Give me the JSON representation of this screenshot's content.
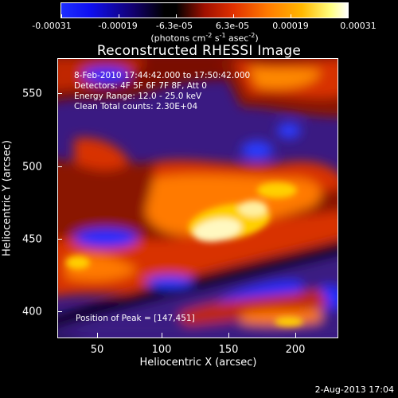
{
  "colorbar": {
    "tick_labels": [
      "-0.00031",
      "-0.00019",
      "-6.3e-05",
      "6.3e-05",
      "0.00019",
      "0.00031"
    ],
    "units_prefix": "(photons cm",
    "units_exp1": "-2",
    "units_mid": " s",
    "units_exp2": "-1",
    "units_mid2": " asec",
    "units_exp3": "-2",
    "units_suffix": ")"
  },
  "title": "Reconstructed RHESSI Image",
  "info": {
    "time_range": "8-Feb-2010 17:44:42.000 to 17:50:42.000",
    "detectors": "Detectors: 4F 5F 6F 7F 8F, Att 0",
    "energy": "Energy Range: 12.0 - 25.0 keV",
    "algorithm": "Clean     Total counts: 2.30E+04",
    "peak": "Position of Peak = [147,451]"
  },
  "x_axis": {
    "title": "Heliocentric X (arcsec)",
    "ticks": [
      "50",
      "100",
      "150",
      "200"
    ]
  },
  "y_axis": {
    "title": "Heliocentric Y (arcsec)",
    "ticks": [
      "550",
      "500",
      "450",
      "400"
    ]
  },
  "date_stamp": "2-Aug-2013 17:04",
  "colors": {
    "deep_blue": "#1d2eff",
    "purple": "#3a1a82",
    "violet": "#5a2ab0",
    "dark_red": "#8a1200",
    "red": "#d83000",
    "orange": "#ff7a00",
    "yellow": "#ffd000",
    "white_hot": "#fff8c0"
  }
}
